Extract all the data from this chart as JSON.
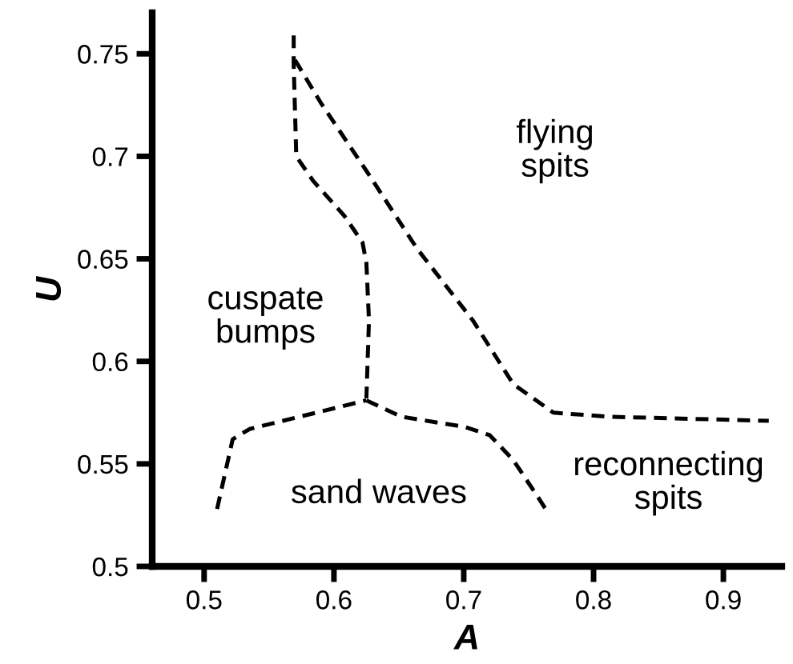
{
  "chart_data": {
    "type": "line",
    "xlabel": "A",
    "ylabel": "U",
    "line_style": "dashed",
    "marker": "none",
    "grid": false,
    "xlim": [
      0.46,
      0.945
    ],
    "ylim": [
      0.5,
      0.77
    ],
    "xticks": [
      0.5,
      0.6,
      0.7,
      0.8,
      0.9
    ],
    "yticks": [
      0.5,
      0.55,
      0.6,
      0.65,
      0.7,
      0.75
    ],
    "series": [
      {
        "color": "#000000",
        "x": [
          0.569,
          0.569,
          0.571,
          0.584,
          0.608,
          0.622,
          0.625,
          0.627,
          0.625
        ],
        "values": [
          0.759,
          0.745,
          0.7,
          0.688,
          0.671,
          0.658,
          0.648,
          0.62,
          0.582
        ]
      },
      {
        "color": "#000000",
        "x": [
          0.57,
          0.59,
          0.627,
          0.664,
          0.707,
          0.738,
          0.769,
          0.812,
          0.935
        ],
        "values": [
          0.747,
          0.726,
          0.691,
          0.655,
          0.62,
          0.589,
          0.575,
          0.573,
          0.571
        ]
      },
      {
        "color": "#000000",
        "x": [
          0.51,
          0.522,
          0.535,
          0.625
        ],
        "values": [
          0.528,
          0.562,
          0.567,
          0.581
        ]
      },
      {
        "color": "#000000",
        "x": [
          0.625,
          0.652,
          0.701,
          0.72,
          0.738,
          0.757,
          0.763
        ],
        "values": [
          0.581,
          0.573,
          0.568,
          0.564,
          0.552,
          0.534,
          0.528
        ]
      }
    ],
    "annotations": [
      "flying\nspits",
      "cuspate\nbumps",
      "sand waves",
      "reconnecting\nspits"
    ]
  }
}
